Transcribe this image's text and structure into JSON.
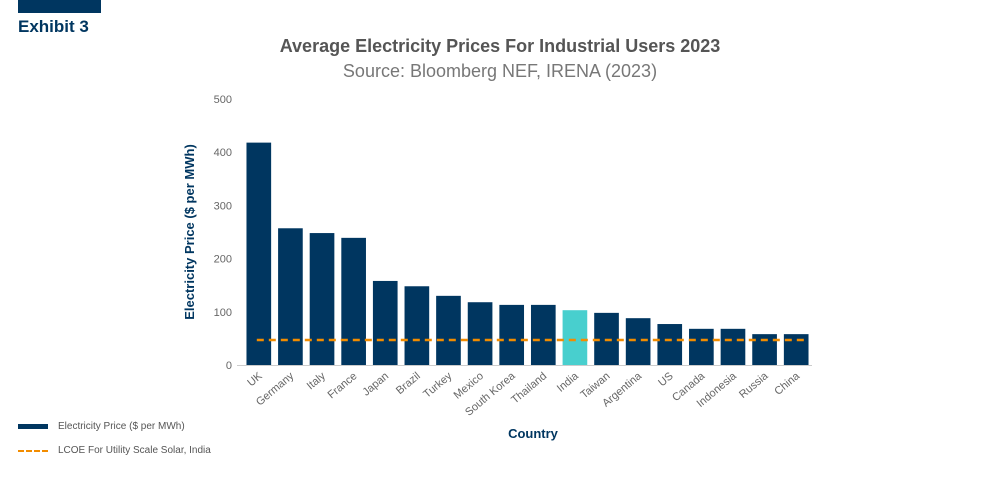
{
  "header": {
    "exhibit": "Exhibit 3"
  },
  "chart_data": {
    "type": "bar",
    "title": "Average Electricity Prices For Industrial Users 2023",
    "subtitle": "Source: Bloomberg NEF, IRENA (2023)",
    "xlabel": "Country",
    "ylabel": "Electricity Price ($ per MWh)",
    "ylim": [
      0,
      500
    ],
    "yticks": [
      0,
      100,
      200,
      300,
      400,
      500
    ],
    "grid": false,
    "categories": [
      "UK",
      "Germany",
      "Italy",
      "France",
      "Japan",
      "Brazil",
      "Turkey",
      "Mexico",
      "South Korea",
      "Thailand",
      "India",
      "Taiwan",
      "Argentina",
      "US",
      "Canada",
      "Indonesia",
      "Russia",
      "China"
    ],
    "series": [
      {
        "name": "Electricity Price ($ per MWh)",
        "type": "bar",
        "values": [
          418,
          257,
          248,
          239,
          158,
          148,
          130,
          118,
          113,
          113,
          103,
          98,
          88,
          77,
          68,
          68,
          58,
          58
        ],
        "color": "#003660",
        "highlight": {
          "category": "India",
          "color": "#48CFCE"
        }
      },
      {
        "name": "LCOE For Utility Scale Solar, India",
        "type": "line",
        "style": "dashed",
        "value": 47,
        "color": "#F28C00"
      }
    ],
    "legend": {
      "position": "bottom-left",
      "items": [
        {
          "label": "Electricity Price ($ per MWh)",
          "kind": "bar",
          "color": "#003660"
        },
        {
          "label": "LCOE For Utility Scale Solar, India",
          "kind": "dashed-line",
          "color": "#F28C00"
        }
      ]
    }
  }
}
